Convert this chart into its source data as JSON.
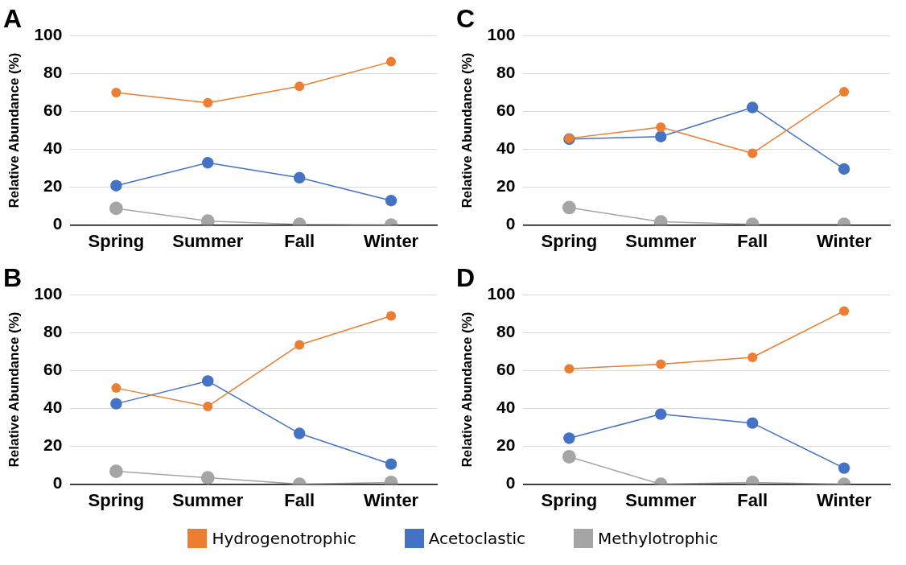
{
  "chart_data": [
    {
      "type": "line",
      "title": "A",
      "ylabel": "Relative Abundance (%)",
      "categories": [
        "Spring",
        "Summer",
        "Fall",
        "Winter"
      ],
      "ylim": [
        0,
        100
      ],
      "yticks": [
        0,
        20,
        40,
        60,
        80,
        100
      ],
      "grid": "y",
      "marker": "circle",
      "legend": "bottom",
      "series": [
        {
          "name": "Hydrogenotrophic",
          "color": "#ed7d31",
          "values": [
            70,
            64.6,
            73.3,
            86.3
          ]
        },
        {
          "name": "Acetoclastic",
          "color": "#4472c4",
          "values": [
            20.8,
            32.9,
            25,
            12.9
          ]
        },
        {
          "name": "Methylotrophic",
          "color": "#a5a5a5",
          "values": [
            8.8,
            2.1,
            0.4,
            0
          ]
        }
      ]
    },
    {
      "type": "line",
      "title": "C",
      "ylabel": "Relative Abundance (%)",
      "categories": [
        "Spring",
        "Summer",
        "Fall",
        "Winter"
      ],
      "ylim": [
        0,
        100
      ],
      "yticks": [
        0,
        20,
        40,
        60,
        80,
        100
      ],
      "grid": "y",
      "marker": "circle",
      "legend": "bottom",
      "series": [
        {
          "name": "Hydrogenotrophic",
          "color": "#ed7d31",
          "values": [
            45.8,
            51.7,
            37.9,
            70.4
          ]
        },
        {
          "name": "Acetoclastic",
          "color": "#4472c4",
          "values": [
            45.4,
            46.7,
            62.1,
            29.6
          ]
        },
        {
          "name": "Methylotrophic",
          "color": "#a5a5a5",
          "values": [
            9.2,
            1.7,
            0.4,
            0.4
          ]
        }
      ]
    },
    {
      "type": "line",
      "title": "B",
      "ylabel": "Relative Abundance (%)",
      "categories": [
        "Spring",
        "Summer",
        "Fall",
        "Winter"
      ],
      "ylim": [
        0,
        100
      ],
      "yticks": [
        0,
        20,
        40,
        60,
        80,
        100
      ],
      "grid": "y",
      "marker": "circle",
      "legend": "bottom",
      "series": [
        {
          "name": "Hydrogenotrophic",
          "color": "#ed7d31",
          "values": [
            50.8,
            41.1,
            73.6,
            88.9
          ]
        },
        {
          "name": "Acetoclastic",
          "color": "#4472c4",
          "values": [
            42.5,
            54.5,
            26.8,
            10.6
          ]
        },
        {
          "name": "Methylotrophic",
          "color": "#a5a5a5",
          "values": [
            6.8,
            3.4,
            0,
            0.9
          ]
        }
      ]
    },
    {
      "type": "line",
      "title": "D",
      "ylabel": "Relative Abundance (%)",
      "categories": [
        "Spring",
        "Summer",
        "Fall",
        "Winter"
      ],
      "ylim": [
        0,
        100
      ],
      "yticks": [
        0,
        20,
        40,
        60,
        80,
        100
      ],
      "grid": "y",
      "marker": "circle",
      "legend": "bottom",
      "series": [
        {
          "name": "Hydrogenotrophic",
          "color": "#ed7d31",
          "values": [
            61,
            63.4,
            67,
            91.5
          ]
        },
        {
          "name": "Acetoclastic",
          "color": "#4472c4",
          "values": [
            24.3,
            37,
            32.3,
            8.5
          ]
        },
        {
          "name": "Methylotrophic",
          "color": "#a5a5a5",
          "values": [
            14.5,
            0,
            0.9,
            0
          ]
        }
      ]
    }
  ]
}
